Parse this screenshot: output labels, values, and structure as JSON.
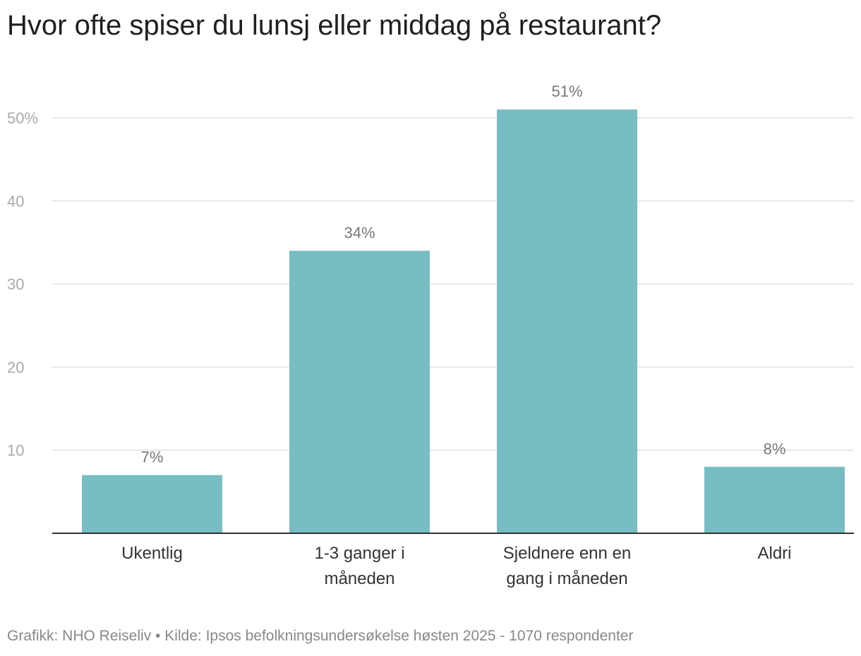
{
  "chart_data": {
    "type": "bar",
    "title": "Hvor ofte spiser du lunsj eller middag på restaurant?",
    "categories": [
      [
        "Ukentlig"
      ],
      [
        "1-3 ganger i",
        "måneden"
      ],
      [
        "Sjeldnere enn en",
        "gang i måneden"
      ],
      [
        "Aldri"
      ]
    ],
    "values": [
      7,
      34,
      51,
      8
    ],
    "data_labels": [
      "7%",
      "34%",
      "51%",
      "8%"
    ],
    "yticks": [
      10,
      20,
      30,
      40,
      50
    ],
    "ytick_labels": [
      "10",
      "20",
      "30",
      "40",
      "50%"
    ],
    "ylim": [
      0,
      51
    ],
    "grid": true,
    "bar_color": "#78bdc2"
  },
  "footer": "Grafikk: NHO Reiseliv • Kilde: Ipsos befolkningsundersøkelse høsten 2025 - 1070 respondenter"
}
